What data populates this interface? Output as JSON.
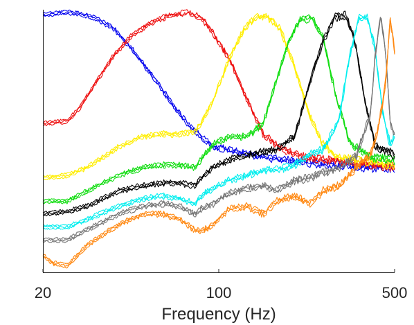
{
  "chart_data": {
    "type": "line",
    "title": "",
    "xlabel": "Frequency (Hz)",
    "ylabel": "",
    "xscale": "log",
    "xlim": [
      20,
      500
    ],
    "ylim": [
      0,
      1
    ],
    "x_ticks": [
      20,
      100,
      500
    ],
    "x_tick_labels": [
      "20",
      "100",
      "500"
    ],
    "grid": false,
    "legend": "none",
    "note_replicates": "each colored curve is drawn as several overlapping replicate traces",
    "series": [
      {
        "color": "#0000ee",
        "x": [
          20,
          22,
          25,
          28,
          32,
          38,
          45,
          55,
          65,
          75,
          85,
          95,
          110,
          130,
          150,
          180,
          220,
          270,
          330,
          400,
          500
        ],
        "y": [
          0.99,
          0.995,
          1.0,
          0.995,
          0.98,
          0.94,
          0.86,
          0.75,
          0.65,
          0.57,
          0.52,
          0.48,
          0.47,
          0.45,
          0.44,
          0.43,
          0.42,
          0.41,
          0.405,
          0.4,
          0.4
        ]
      },
      {
        "color": "#ee1111",
        "x": [
          20,
          25,
          28,
          32,
          38,
          45,
          55,
          65,
          75,
          85,
          95,
          110,
          130,
          150,
          180,
          220,
          270,
          330,
          400,
          500
        ],
        "y": [
          0.57,
          0.58,
          0.63,
          0.72,
          0.83,
          0.91,
          0.965,
          0.99,
          1.0,
          0.98,
          0.92,
          0.82,
          0.66,
          0.53,
          0.47,
          0.44,
          0.43,
          0.42,
          0.41,
          0.4
        ]
      },
      {
        "color": "#ffee00",
        "x": [
          20,
          25,
          30,
          40,
          50,
          60,
          70,
          80,
          85,
          95,
          110,
          125,
          140,
          155,
          175,
          200,
          230,
          260,
          300,
          350,
          420,
          500
        ],
        "y": [
          0.36,
          0.37,
          0.4,
          0.48,
          0.52,
          0.53,
          0.53,
          0.54,
          0.57,
          0.66,
          0.82,
          0.93,
          0.98,
          0.985,
          0.94,
          0.79,
          0.6,
          0.49,
          0.44,
          0.43,
          0.42,
          0.41
        ]
      },
      {
        "color": "#11dd11",
        "x": [
          20,
          25,
          30,
          40,
          50,
          60,
          70,
          80,
          85,
          95,
          110,
          130,
          150,
          170,
          190,
          210,
          235,
          260,
          290,
          330,
          400,
          500
        ],
        "y": [
          0.27,
          0.27,
          0.31,
          0.37,
          0.4,
          0.41,
          0.41,
          0.4,
          0.43,
          0.49,
          0.52,
          0.52,
          0.57,
          0.74,
          0.89,
          0.97,
          0.98,
          0.9,
          0.69,
          0.5,
          0.44,
          0.43
        ]
      },
      {
        "color": "#000000",
        "x": [
          20,
          25,
          30,
          40,
          50,
          60,
          70,
          80,
          85,
          95,
          110,
          130,
          150,
          170,
          200,
          230,
          260,
          290,
          320,
          350,
          380,
          420,
          500
        ],
        "y": [
          0.22,
          0.23,
          0.25,
          0.31,
          0.33,
          0.34,
          0.34,
          0.33,
          0.36,
          0.4,
          0.43,
          0.45,
          0.46,
          0.47,
          0.52,
          0.73,
          0.89,
          0.98,
          0.99,
          0.88,
          0.66,
          0.48,
          0.45
        ]
      },
      {
        "color": "#00eeee",
        "x": [
          20,
          25,
          30,
          40,
          50,
          60,
          70,
          80,
          85,
          95,
          110,
          130,
          150,
          170,
          200,
          230,
          260,
          300,
          330,
          360,
          390,
          420,
          450,
          480,
          500
        ],
        "y": [
          0.17,
          0.17,
          0.2,
          0.25,
          0.28,
          0.29,
          0.28,
          0.26,
          0.29,
          0.32,
          0.35,
          0.37,
          0.39,
          0.39,
          0.41,
          0.45,
          0.47,
          0.58,
          0.82,
          0.98,
          0.98,
          0.85,
          0.6,
          0.49,
          0.52
        ]
      },
      {
        "color": "#777777",
        "x": [
          20,
          25,
          30,
          40,
          50,
          60,
          70,
          80,
          85,
          95,
          110,
          130,
          150,
          170,
          200,
          230,
          260,
          300,
          350,
          400,
          420,
          440,
          460,
          480,
          500
        ],
        "y": [
          0.12,
          0.12,
          0.16,
          0.22,
          0.25,
          0.26,
          0.25,
          0.22,
          0.24,
          0.26,
          0.3,
          0.32,
          0.33,
          0.31,
          0.35,
          0.36,
          0.38,
          0.4,
          0.44,
          0.6,
          0.85,
          0.99,
          0.85,
          0.58,
          0.52
        ]
      },
      {
        "color": "#ff8811",
        "x": [
          20,
          22,
          25,
          30,
          40,
          50,
          60,
          70,
          80,
          85,
          95,
          110,
          130,
          150,
          170,
          200,
          230,
          260,
          300,
          350,
          400,
          430,
          460,
          480,
          500
        ],
        "y": [
          0.06,
          0.03,
          0.02,
          0.1,
          0.18,
          0.22,
          0.22,
          0.2,
          0.16,
          0.15,
          0.18,
          0.24,
          0.25,
          0.22,
          0.27,
          0.29,
          0.26,
          0.31,
          0.33,
          0.4,
          0.45,
          0.55,
          0.72,
          0.98,
          0.85
        ]
      }
    ]
  }
}
